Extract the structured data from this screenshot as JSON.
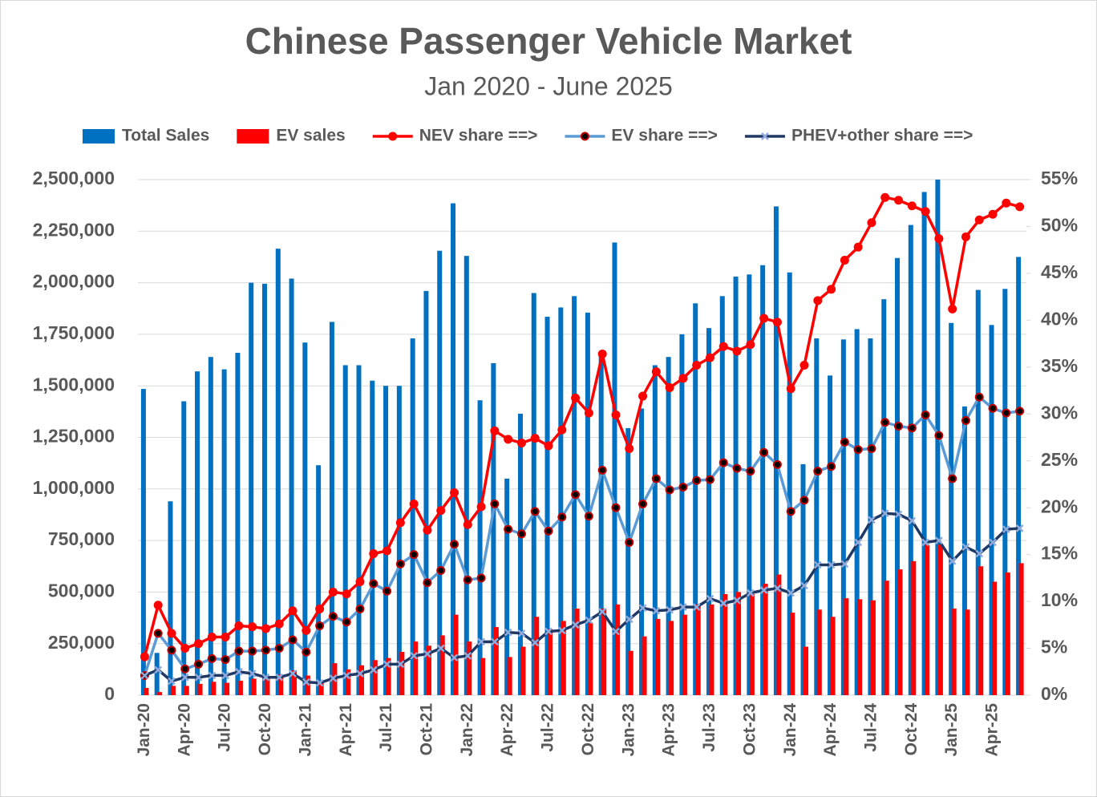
{
  "chart_data": {
    "type": "combo",
    "title": "Chinese Passenger Vehicle Market",
    "subtitle": "Jan 2020 - June 2025",
    "categories": [
      "Jan-20",
      null,
      null,
      "Apr-20",
      null,
      null,
      "Jul-20",
      null,
      null,
      "Oct-20",
      null,
      null,
      "Jan-21",
      null,
      null,
      "Apr-21",
      null,
      null,
      "Jul-21",
      null,
      null,
      "Oct-21",
      null,
      null,
      "Jan-22",
      null,
      null,
      "Apr-22",
      null,
      null,
      "Jul-22",
      null,
      null,
      "Oct-22",
      null,
      null,
      "Jan-23",
      null,
      null,
      "Apr-23",
      null,
      null,
      "Jul-23",
      null,
      null,
      "Oct-23",
      null,
      null,
      "Jan-24",
      null,
      null,
      "Apr-24",
      null,
      null,
      "Jul-24",
      null,
      null,
      "Oct-24",
      null,
      null,
      "Jan-25",
      null,
      null,
      "Apr-25",
      null,
      null
    ],
    "ylim": [
      0,
      2500000
    ],
    "yticks": [
      0,
      {
        "value": 250000,
        "label": "250,000"
      },
      {
        "value": 500000,
        "label": "500,000"
      },
      {
        "value": 750000,
        "label": "750,000"
      },
      {
        "value": 1000000,
        "label": "1,000,000"
      },
      {
        "value": 1250000,
        "label": "1,250,000"
      },
      {
        "value": 1500000,
        "label": "1,500,000"
      },
      {
        "value": 1750000,
        "label": "1,750,000"
      },
      {
        "value": 2000000,
        "label": "2,000,000"
      },
      {
        "value": 2250000,
        "label": "2,250,000"
      },
      {
        "value": 2500000,
        "label": "2,500,000"
      }
    ],
    "y2lim": [
      0,
      55
    ],
    "y2ticks": [
      {
        "value": 0,
        "label": "0%"
      },
      {
        "value": 5,
        "label": "5%"
      },
      {
        "value": 10,
        "label": "10%"
      },
      {
        "value": 15,
        "label": "15%"
      },
      {
        "value": 20,
        "label": "20%"
      },
      {
        "value": 25,
        "label": "25%"
      },
      {
        "value": 30,
        "label": "30%"
      },
      {
        "value": 35,
        "label": "35%"
      },
      {
        "value": 40,
        "label": "40%"
      },
      {
        "value": 45,
        "label": "45%"
      },
      {
        "value": 50,
        "label": "50%"
      },
      {
        "value": 55,
        "label": "55%"
      }
    ],
    "grid": true,
    "legend": "top",
    "series": [
      {
        "name": "Total Sales",
        "type": "bar",
        "color": "#0070c0",
        "values": [
          1485000,
          205000,
          940000,
          1425000,
          1570000,
          1640000,
          1580000,
          1660000,
          2000000,
          1995000,
          2165000,
          2020000,
          1710000,
          1115000,
          1810000,
          1600000,
          1600000,
          1525000,
          1500000,
          1500000,
          1730000,
          1960000,
          2155000,
          2385000,
          2130000,
          1430000,
          1610000,
          1050000,
          1365000,
          1950000,
          1835000,
          1880000,
          1935000,
          1855000,
          1650000,
          2195000,
          1295000,
          1390000,
          1600000,
          1640000,
          1750000,
          1900000,
          1780000,
          1935000,
          2030000,
          2040000,
          2085000,
          2370000,
          2050000,
          1120000,
          1730000,
          1550000,
          1725000,
          1775000,
          1730000,
          1920000,
          2120000,
          2280000,
          2440000,
          2500000,
          1805000,
          1400000,
          1965000,
          1795000,
          1970000,
          2125000
        ]
      },
      {
        "name": "EV sales",
        "type": "bar",
        "color": "#ff0000",
        "values": [
          35000,
          15000,
          45000,
          45000,
          55000,
          65000,
          60000,
          70000,
          80000,
          85000,
          100000,
          120000,
          95000,
          60000,
          155000,
          125000,
          145000,
          170000,
          180000,
          210000,
          260000,
          240000,
          290000,
          390000,
          260000,
          180000,
          330000,
          185000,
          235000,
          380000,
          320000,
          360000,
          420000,
          350000,
          420000,
          440000,
          215000,
          285000,
          370000,
          360000,
          390000,
          440000,
          440000,
          490000,
          500000,
          490000,
          540000,
          585000,
          400000,
          235000,
          415000,
          380000,
          470000,
          465000,
          460000,
          555000,
          610000,
          650000,
          730000,
          730000,
          420000,
          415000,
          625000,
          550000,
          595000,
          640000
        ]
      },
      {
        "name": "NEV share ==>",
        "type": "line",
        "axis": "y2",
        "color": "#ff0000",
        "marker": "circle",
        "values": [
          4.1,
          9.6,
          6.6,
          5.0,
          5.5,
          6.2,
          6.2,
          7.4,
          7.3,
          7.1,
          7.6,
          9.0,
          6.9,
          9.2,
          11.0,
          10.8,
          12.1,
          15.1,
          15.4,
          18.4,
          20.4,
          17.6,
          19.7,
          21.6,
          18.2,
          20.1,
          28.2,
          27.3,
          26.9,
          27.4,
          26.6,
          28.3,
          31.7,
          30.1,
          36.4,
          29.9,
          26.3,
          31.9,
          34.5,
          32.8,
          33.8,
          35.2,
          36.0,
          37.2,
          36.7,
          37.4,
          40.2,
          39.8,
          32.7,
          35.2,
          42.1,
          43.3,
          46.4,
          47.8,
          50.4,
          53.1,
          52.8,
          52.2,
          51.6,
          48.7,
          41.2,
          48.9,
          50.7,
          51.3,
          52.5,
          52.1
        ]
      },
      {
        "name": "EV share ==>",
        "type": "line",
        "axis": "y2",
        "color": "#5b9bd5",
        "marker": "dot",
        "values": [
          2.1,
          6.6,
          4.8,
          2.8,
          3.3,
          3.9,
          3.8,
          4.7,
          4.7,
          4.8,
          5.0,
          5.9,
          4.6,
          7.4,
          8.4,
          7.8,
          9.2,
          11.9,
          11.1,
          14.0,
          15.0,
          12.0,
          13.3,
          16.1,
          12.3,
          12.5,
          20.4,
          17.7,
          17.2,
          19.6,
          17.5,
          19.0,
          21.4,
          19.1,
          24.0,
          20.0,
          16.3,
          20.4,
          23.1,
          21.9,
          22.2,
          22.9,
          23.0,
          24.8,
          24.2,
          23.9,
          25.9,
          24.6,
          19.6,
          20.8,
          23.9,
          24.4,
          27.0,
          26.2,
          26.3,
          29.1,
          28.7,
          28.5,
          29.9,
          27.7,
          23.1,
          29.3,
          31.8,
          30.6,
          30.1,
          30.3
        ]
      },
      {
        "name": "PHEV+other share ==>",
        "type": "line",
        "axis": "y2",
        "color": "#203864",
        "marker": "x",
        "values": [
          2.1,
          2.7,
          1.5,
          1.9,
          1.9,
          2.1,
          2.1,
          2.5,
          2.3,
          1.9,
          1.9,
          2.3,
          1.4,
          1.3,
          1.8,
          2.1,
          2.3,
          2.7,
          3.3,
          3.3,
          4.2,
          4.4,
          5.0,
          4.0,
          4.2,
          5.7,
          5.7,
          6.7,
          6.6,
          5.6,
          6.8,
          6.9,
          7.5,
          8.0,
          8.9,
          6.8,
          8.1,
          9.3,
          9.0,
          9.1,
          9.4,
          9.4,
          10.3,
          9.8,
          10.1,
          10.9,
          11.2,
          11.4,
          10.9,
          11.7,
          13.9,
          13.9,
          14.0,
          16.3,
          18.7,
          19.4,
          19.3,
          18.6,
          16.3,
          16.5,
          14.3,
          15.8,
          15.1,
          16.3,
          17.7,
          17.8
        ]
      }
    ]
  }
}
